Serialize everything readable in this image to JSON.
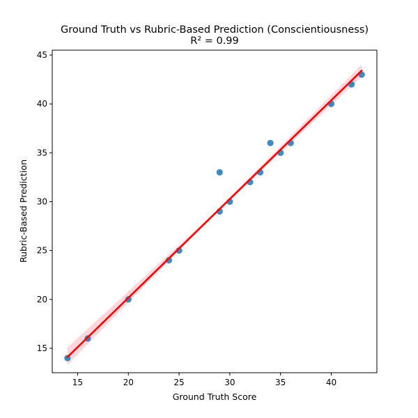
{
  "chart_data": {
    "type": "scatter",
    "title": "Ground Truth vs Rubric-Based Prediction (Conscientiousness)",
    "subtitle": "R² = 0.99",
    "xlabel": "Ground Truth Score",
    "ylabel": "Rubric-Based Prediction",
    "xlim": [
      12.5,
      44.5
    ],
    "ylim": [
      12.5,
      45.5
    ],
    "xticks": [
      15,
      20,
      25,
      30,
      35,
      40
    ],
    "yticks": [
      15,
      20,
      25,
      30,
      35,
      40,
      45
    ],
    "grid": false,
    "legend": "none",
    "series": [
      {
        "points": [
          {
            "x": 14,
            "y": 14
          },
          {
            "x": 16,
            "y": 16
          },
          {
            "x": 20,
            "y": 20
          },
          {
            "x": 24,
            "y": 24
          },
          {
            "x": 25,
            "y": 25
          },
          {
            "x": 29,
            "y": 33
          },
          {
            "x": 29,
            "y": 29
          },
          {
            "x": 30,
            "y": 30
          },
          {
            "x": 32,
            "y": 32
          },
          {
            "x": 33,
            "y": 33
          },
          {
            "x": 34,
            "y": 36
          },
          {
            "x": 35,
            "y": 35
          },
          {
            "x": 36,
            "y": 36
          },
          {
            "x": 40,
            "y": 40
          },
          {
            "x": 42,
            "y": 42
          },
          {
            "x": 43,
            "y": 43
          }
        ]
      }
    ],
    "regression_line": {
      "start": {
        "x": 14,
        "y": 14.1
      },
      "end": {
        "x": 43,
        "y": 43.4
      }
    },
    "confidence_band": {
      "upper": [
        {
          "x": 14,
          "y": 15.1
        },
        {
          "x": 28.5,
          "y": 28.9
        },
        {
          "x": 43,
          "y": 44.0
        }
      ],
      "lower": [
        {
          "x": 14,
          "y": 13.3
        },
        {
          "x": 28.5,
          "y": 28.7
        },
        {
          "x": 43,
          "y": 42.8
        }
      ]
    },
    "colors": {
      "points": "#1f77b4",
      "regression": "#ff0000",
      "band": "#ffb6c1"
    }
  }
}
